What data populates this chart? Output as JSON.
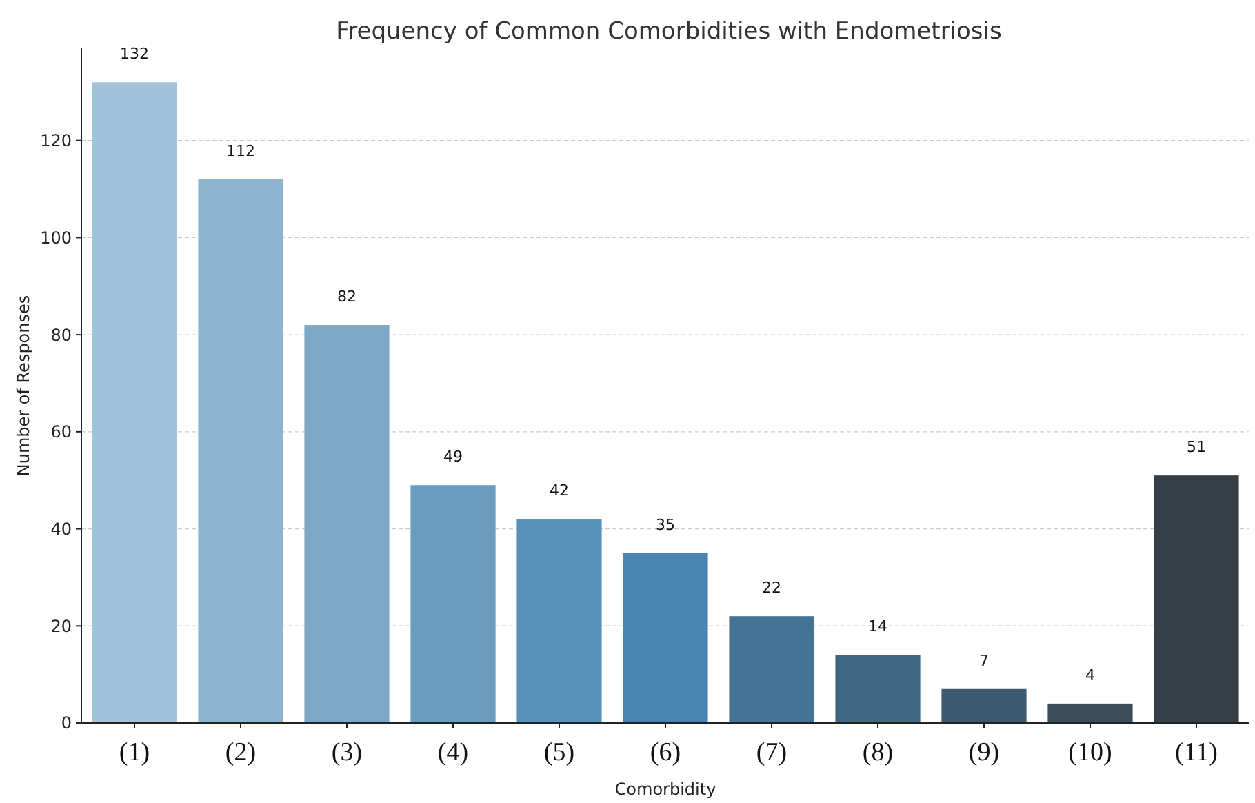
{
  "chart_data": {
    "type": "bar",
    "title": "Frequency of Common Comorbidities with Endometriosis",
    "xlabel": "Comorbidity",
    "ylabel": "Number of Responses",
    "categories": [
      "(1)",
      "(2)",
      "(3)",
      "(4)",
      "(5)",
      "(6)",
      "(7)",
      "(8)",
      "(9)",
      "(10)",
      "(11)"
    ],
    "values": [
      132,
      112,
      82,
      49,
      42,
      35,
      22,
      14,
      7,
      4,
      51
    ],
    "colors": [
      "#a2c2d9",
      "#8fb4cd",
      "#7ea8c6",
      "#6a9cc0",
      "#5a91b8",
      "#4a84b0",
      "#447396",
      "#406680",
      "#3d596f",
      "#3b4c5b",
      "#353f46"
    ],
    "ylim": [
      0,
      139
    ],
    "yticks": [
      0,
      20,
      40,
      60,
      80,
      100,
      120
    ],
    "grid": "y",
    "data_labels": true
  }
}
